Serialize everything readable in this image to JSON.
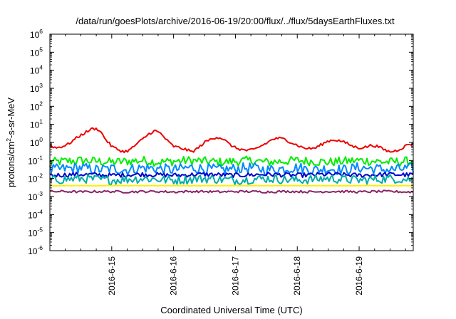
{
  "chart_data": {
    "type": "line",
    "title": "/data/run/goesPlots/archive/2016-06-19/20:00/flux/../flux/5daysEarthFluxes.txt",
    "xlabel": "Coordinated Universal Time (UTC)",
    "ylabel": {
      "pre": "protons/cm",
      "sup": "2",
      "post": "-s-sr-MeV"
    },
    "x_unit": "days",
    "xlim": [
      14.0,
      19.875
    ],
    "ylim": [
      1e-06,
      1000000.0
    ],
    "yscale": "log",
    "grid": false,
    "legend": "none",
    "x_ticks": [
      {
        "x": 15,
        "label": "2016-6-15"
      },
      {
        "x": 16,
        "label": "2016-6-16"
      },
      {
        "x": 17,
        "label": "2016-6-17"
      },
      {
        "x": 18,
        "label": "2016-6-18"
      },
      {
        "x": 19,
        "label": "2016-6-19"
      }
    ],
    "y_ticks": [
      {
        "value": 1e-06,
        "base": "10",
        "exp": "-6"
      },
      {
        "value": 1e-05,
        "base": "10",
        "exp": "-5"
      },
      {
        "value": 0.0001,
        "base": "10",
        "exp": "-4"
      },
      {
        "value": 0.001,
        "base": "10",
        "exp": "-3"
      },
      {
        "value": 0.01,
        "base": "10",
        "exp": "-2"
      },
      {
        "value": 0.1,
        "base": "10",
        "exp": "-1"
      },
      {
        "value": 1.0,
        "base": "10",
        "exp": "0"
      },
      {
        "value": 10.0,
        "base": "10",
        "exp": "1"
      },
      {
        "value": 100.0,
        "base": "10",
        "exp": "2"
      },
      {
        "value": 1000.0,
        "base": "10",
        "exp": "3"
      },
      {
        "value": 10000.0,
        "base": "10",
        "exp": "4"
      },
      {
        "value": 100000.0,
        "base": "10",
        "exp": "5"
      },
      {
        "value": 1000000.0,
        "base": "10",
        "exp": "6"
      }
    ],
    "series": [
      {
        "color": "#00ee00",
        "noise": 0.5,
        "x": [
          14.0,
          14.25,
          14.5,
          14.75,
          15.0,
          15.25,
          15.5,
          15.75,
          16.0,
          16.25,
          16.5,
          16.75,
          17.0,
          17.25,
          17.5,
          17.75,
          18.0,
          18.25,
          18.5,
          18.75,
          19.0,
          19.25,
          19.5,
          19.75,
          19.875
        ],
        "y": [
          0.08,
          0.09,
          0.1,
          0.09,
          0.08,
          0.09,
          0.1,
          0.08,
          0.09,
          0.1,
          0.09,
          0.08,
          0.09,
          0.1,
          0.08,
          0.09,
          0.1,
          0.09,
          0.08,
          0.09,
          0.1,
          0.09,
          0.08,
          0.09,
          0.09
        ]
      },
      {
        "color": "#0088ff",
        "noise": 0.6,
        "x": [
          14.0,
          14.25,
          14.5,
          14.75,
          15.0,
          15.25,
          15.5,
          15.75,
          16.0,
          16.25,
          16.5,
          16.75,
          17.0,
          17.25,
          17.5,
          17.75,
          18.0,
          18.25,
          18.5,
          18.75,
          19.0,
          19.25,
          19.5,
          19.75,
          19.875
        ],
        "y": [
          0.03,
          0.035,
          0.04,
          0.03,
          0.035,
          0.03,
          0.04,
          0.035,
          0.03,
          0.04,
          0.035,
          0.03,
          0.035,
          0.04,
          0.03,
          0.035,
          0.04,
          0.03,
          0.035,
          0.03,
          0.04,
          0.035,
          0.03,
          0.035,
          0.035
        ]
      },
      {
        "color": "#0000cc",
        "noise": 0.25,
        "x": [
          14.0,
          14.25,
          14.5,
          14.75,
          15.0,
          15.25,
          15.5,
          15.75,
          16.0,
          16.25,
          16.5,
          16.75,
          17.0,
          17.25,
          17.5,
          17.75,
          18.0,
          18.25,
          18.5,
          18.75,
          19.0,
          19.25,
          19.5,
          19.75,
          19.875
        ],
        "y": [
          0.015,
          0.016,
          0.017,
          0.016,
          0.015,
          0.016,
          0.017,
          0.016,
          0.015,
          0.016,
          0.017,
          0.016,
          0.015,
          0.016,
          0.017,
          0.016,
          0.015,
          0.016,
          0.017,
          0.016,
          0.015,
          0.016,
          0.017,
          0.016,
          0.016
        ]
      },
      {
        "color": "#00aaaa",
        "noise": 0.5,
        "x": [
          14.0,
          14.25,
          14.5,
          14.75,
          15.0,
          15.25,
          15.5,
          15.75,
          16.0,
          16.25,
          16.5,
          16.75,
          17.0,
          17.25,
          17.5,
          17.75,
          18.0,
          18.25,
          18.5,
          18.75,
          19.0,
          19.25,
          19.5,
          19.75,
          19.875
        ],
        "y": [
          0.008,
          0.009,
          0.01,
          0.009,
          0.008,
          0.009,
          0.01,
          0.009,
          0.008,
          0.009,
          0.01,
          0.009,
          0.008,
          0.009,
          0.01,
          0.009,
          0.008,
          0.009,
          0.01,
          0.009,
          0.008,
          0.009,
          0.01,
          0.009,
          0.009
        ]
      },
      {
        "color": "#ffee00",
        "noise": 0.02,
        "x": [
          14.0,
          14.5,
          15.0,
          15.5,
          16.0,
          16.5,
          17.0,
          17.5,
          18.0,
          18.5,
          19.0,
          19.5,
          19.875
        ],
        "y": [
          0.004,
          0.004,
          0.004,
          0.004,
          0.004,
          0.004,
          0.004,
          0.004,
          0.004,
          0.004,
          0.004,
          0.004,
          0.004
        ]
      },
      {
        "color": "#882266",
        "noise": 0.12,
        "x": [
          14.0,
          14.25,
          14.5,
          14.75,
          15.0,
          15.25,
          15.5,
          15.75,
          16.0,
          16.25,
          16.5,
          16.75,
          17.0,
          17.25,
          17.5,
          17.75,
          18.0,
          18.25,
          18.5,
          18.75,
          19.0,
          19.25,
          19.5,
          19.75,
          19.875
        ],
        "y": [
          0.0019,
          0.0019,
          0.0018,
          0.0019,
          0.0019,
          0.0018,
          0.0019,
          0.0019,
          0.0018,
          0.0019,
          0.0019,
          0.0018,
          0.0019,
          0.0019,
          0.0018,
          0.0019,
          0.0019,
          0.0018,
          0.0019,
          0.0019,
          0.0018,
          0.0019,
          0.0019,
          0.0018,
          0.0018
        ]
      },
      {
        "color": "#ee0000",
        "noise": 0.15,
        "x": [
          14.0,
          14.1,
          14.2,
          14.3,
          14.4,
          14.5,
          14.6,
          14.7,
          14.8,
          14.9,
          15.0,
          15.1,
          15.2,
          15.3,
          15.4,
          15.5,
          15.6,
          15.7,
          15.8,
          15.9,
          16.0,
          16.1,
          16.2,
          16.3,
          16.4,
          16.5,
          16.6,
          16.7,
          16.8,
          16.9,
          17.0,
          17.1,
          17.2,
          17.3,
          17.4,
          17.5,
          17.6,
          17.7,
          17.8,
          17.9,
          18.0,
          18.1,
          18.2,
          18.3,
          18.4,
          18.5,
          18.6,
          18.7,
          18.8,
          18.9,
          19.0,
          19.1,
          19.2,
          19.3,
          19.4,
          19.5,
          19.6,
          19.7,
          19.8,
          19.875
        ],
        "y": [
          0.7,
          0.5,
          0.6,
          0.8,
          1.5,
          2.5,
          4.0,
          6.0,
          5.0,
          1.5,
          0.6,
          0.4,
          0.3,
          0.4,
          0.8,
          1.5,
          3.0,
          4.5,
          3.0,
          1.2,
          0.6,
          0.5,
          0.4,
          0.3,
          0.5,
          1.0,
          1.5,
          2.0,
          1.6,
          0.8,
          0.5,
          0.4,
          0.35,
          0.4,
          0.6,
          0.9,
          1.5,
          1.7,
          1.5,
          1.0,
          0.7,
          0.5,
          0.45,
          0.5,
          0.8,
          1.2,
          1.4,
          1.2,
          0.9,
          0.6,
          0.5,
          0.55,
          0.7,
          0.6,
          0.4,
          0.3,
          0.35,
          0.5,
          0.8,
          0.8
        ]
      }
    ]
  }
}
